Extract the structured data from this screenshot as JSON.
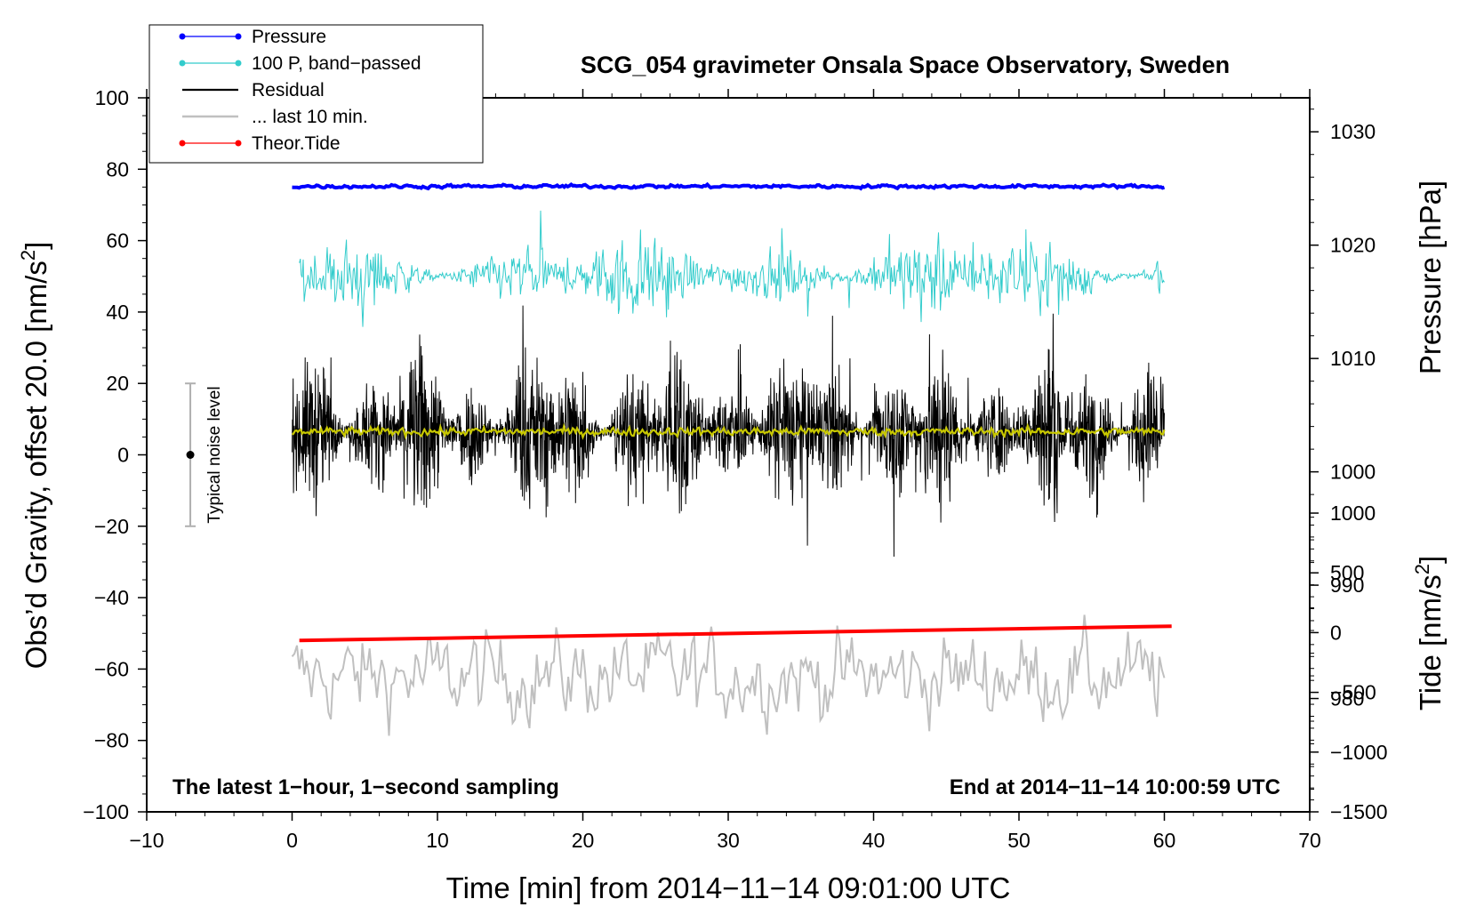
{
  "chart_data": {
    "type": "line",
    "title": "SCG_054 gravimeter Onsala Space Observatory, Sweden",
    "xlabel": "Time [min] from 2014−11−14 09:01:00 UTC",
    "ylabel_left_main": "Obs’d Gravity, offset 20.0 [nm/s",
    "ylabel_left_sup": "2",
    "ylabel_left_end": "]",
    "ylabel_right_top": "Pressure [hPa]",
    "ylabel_right_bottom_main": "Tide [nm/s",
    "ylabel_right_bottom_sup": "2",
    "ylabel_right_bottom_end": "]",
    "xlim": [
      -10,
      70
    ],
    "ylim": [
      -100,
      100
    ],
    "xticks": [
      -10,
      0,
      10,
      20,
      30,
      40,
      50,
      60,
      70
    ],
    "xtick_labels": [
      "−10",
      "0",
      "10",
      "20",
      "30",
      "40",
      "50",
      "60",
      "70"
    ],
    "yticks": [
      -100,
      -80,
      -60,
      -40,
      -20,
      0,
      20,
      40,
      60,
      80,
      100
    ],
    "ytick_labels": [
      "−100",
      "−80",
      "−60",
      "−40",
      "−20",
      "0",
      "20",
      "40",
      "60",
      "80",
      "100"
    ],
    "pressure_axis": {
      "ylim": [
        970,
        1033
      ],
      "ticks": [
        980,
        990,
        1000,
        1010,
        1020,
        1030
      ],
      "tick_labels": [
        "980",
        "990",
        "1000",
        "1010",
        "1020",
        "1030"
      ]
    },
    "tide_axis": {
      "ylim": [
        -1500,
        1000
      ],
      "ticks": [
        -1500,
        -1000,
        -500,
        0,
        500,
        1000
      ],
      "tick_labels": [
        "−1500",
        "−1000",
        "−500",
        "0",
        "500",
        "1000"
      ]
    },
    "series": [
      {
        "name": "Pressure",
        "color": "#0000ff",
        "mean": 75.2,
        "amplitude": 0.4,
        "x_start": 0,
        "x_end": 60
      },
      {
        "name": "100 P, band−passed",
        "color": "#33cccc",
        "mean": 50,
        "amplitude": 4,
        "x_start": 0.5,
        "x_end": 60
      },
      {
        "name": "Residual",
        "color": "#000000",
        "mean": 6.5,
        "amplitude": 12,
        "x_start": 0,
        "x_end": 60
      },
      {
        "name": "... last 10 min.",
        "color": "#c0c0c0",
        "mean": -62,
        "amplitude": 10,
        "x_start": 0,
        "x_end": 60
      },
      {
        "name": "Theor.Tide",
        "color": "#ff0000",
        "y_start": -52,
        "y_end": -48,
        "x_start": 0.5,
        "x_end": 60.5
      },
      {
        "name": "Smoothed residual",
        "color": "#c8c800",
        "mean": 6.5,
        "amplitude": 0.8,
        "x_start": 0,
        "x_end": 60
      }
    ],
    "legend": {
      "placement": "top-left",
      "entries": [
        {
          "label": "Pressure",
          "color": "#0000ff",
          "marker": true
        },
        {
          "label": "100 P, band−passed",
          "color": "#33cccc",
          "marker": true
        },
        {
          "label": "Residual",
          "color": "#000000",
          "marker": false
        },
        {
          "label": "... last 10 min.",
          "color": "#c0c0c0",
          "marker": false
        },
        {
          "label": "Theor.Tide",
          "color": "#ff0000",
          "marker": true
        }
      ]
    },
    "noise_level": {
      "x": -7,
      "center": 0,
      "low": -20,
      "high": 20,
      "label": "Typical noise level"
    },
    "annotations": {
      "bottom_left": "The latest 1−hour, 1−second sampling",
      "bottom_right": "End at 2014−11−14 10:00:59 UTC"
    }
  }
}
